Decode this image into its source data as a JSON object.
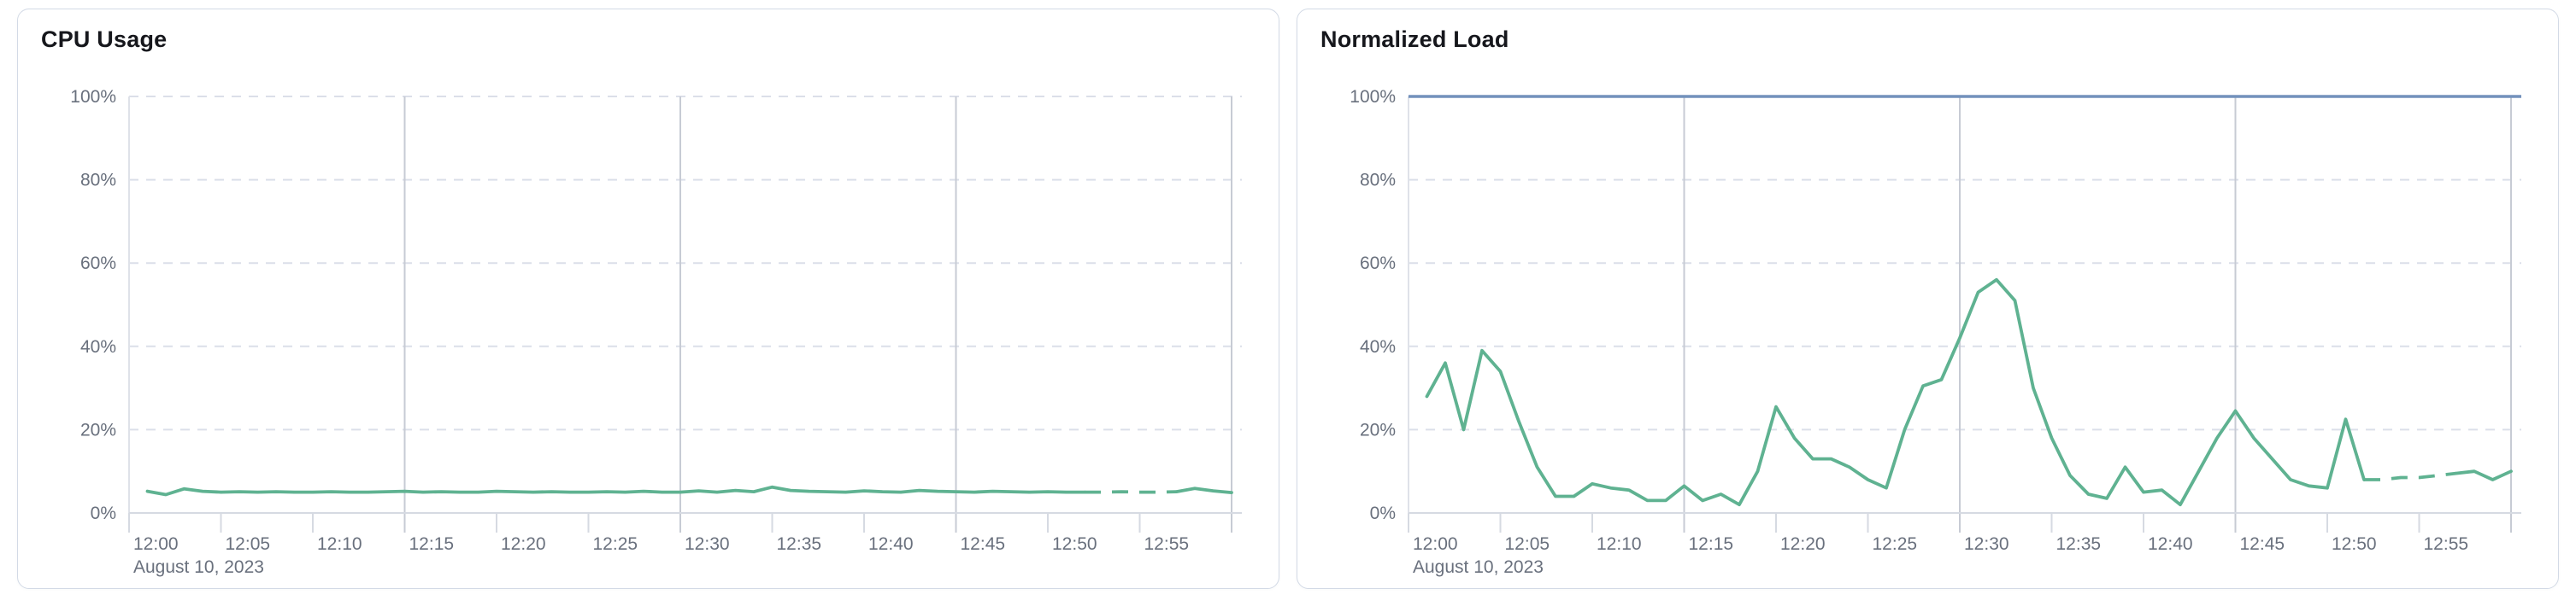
{
  "palette": {
    "page_background": "#FFFFFF",
    "card_background": "#FFFFFF",
    "card_border": "#D3DAE6",
    "title_text": "#16171C",
    "axis_text": "#69707D",
    "h_gridline": "#DBDFE9",
    "v_gridline_major": "#C7CBD4",
    "axis_line": "#D6DAE2",
    "plot_left_edge": "#DFE2E9",
    "series_green": "#5FB291",
    "series_blue": "#7291BC"
  },
  "chart_data": [
    {
      "type": "line",
      "title": "CPU Usage",
      "date_label": "August 10, 2023",
      "x_tick_labels": [
        "12:00",
        "12:05",
        "12:10",
        "12:15",
        "12:20",
        "12:25",
        "12:30",
        "12:35",
        "12:40",
        "12:45",
        "12:50",
        "12:55"
      ],
      "x_axis": {
        "start": "12:00",
        "end": "13:00",
        "tick_interval_minutes": 5,
        "major_gridline_minutes": [
          15,
          30,
          45,
          60
        ]
      },
      "ylabel": "",
      "ylim": [
        0,
        100
      ],
      "grid": {
        "horizontal_dashed": true,
        "legend": "none"
      },
      "y_ticks": [
        {
          "value": 0,
          "label": "0%"
        },
        {
          "value": 20,
          "label": "20%"
        },
        {
          "value": 40,
          "label": "40%"
        },
        {
          "value": 60,
          "label": "60%"
        },
        {
          "value": 80,
          "label": "80%"
        },
        {
          "value": 100,
          "label": "100%"
        }
      ],
      "series": [
        {
          "name": "cpu-usage",
          "color": "#5FB291",
          "start_minute": 1,
          "interval_minutes": 1,
          "dashed_segment_minutes": [
            52,
            57
          ],
          "values": [
            5.2,
            4.4,
            5.8,
            5.2,
            5.0,
            5.1,
            5.0,
            5.1,
            5.0,
            5.0,
            5.1,
            5.0,
            5.0,
            5.1,
            5.2,
            5.0,
            5.1,
            5.0,
            5.0,
            5.2,
            5.1,
            5.0,
            5.1,
            5.0,
            5.0,
            5.1,
            5.0,
            5.2,
            5.0,
            5.0,
            5.3,
            5.0,
            5.4,
            5.1,
            6.2,
            5.4,
            5.2,
            5.1,
            5.0,
            5.3,
            5.1,
            5.0,
            5.4,
            5.2,
            5.1,
            5.0,
            5.2,
            5.1,
            5.0,
            5.1,
            5.0,
            5.0,
            5.0,
            5.1,
            5.0,
            5.0,
            5.1,
            5.9,
            5.3,
            4.9
          ]
        }
      ]
    },
    {
      "type": "line",
      "title": "Normalized Load",
      "date_label": "August 10, 2023",
      "x_tick_labels": [
        "12:00",
        "12:05",
        "12:10",
        "12:15",
        "12:20",
        "12:25",
        "12:30",
        "12:35",
        "12:40",
        "12:45",
        "12:50",
        "12:55"
      ],
      "x_axis": {
        "start": "12:00",
        "end": "13:00",
        "tick_interval_minutes": 5,
        "major_gridline_minutes": [
          15,
          30,
          45,
          60
        ]
      },
      "ylabel": "",
      "ylim": [
        0,
        100
      ],
      "grid": {
        "horizontal_dashed": true,
        "legend": "none"
      },
      "y_ticks": [
        {
          "value": 0,
          "label": "0%"
        },
        {
          "value": 20,
          "label": "20%"
        },
        {
          "value": 40,
          "label": "40%"
        },
        {
          "value": 60,
          "label": "60%"
        },
        {
          "value": 80,
          "label": "80%"
        },
        {
          "value": 100,
          "label": "100%"
        }
      ],
      "series": [
        {
          "name": "normalized-load",
          "color": "#5FB291",
          "start_minute": 1,
          "interval_minutes": 1,
          "dashed_segment_minutes": [
            52,
            57
          ],
          "values": [
            28,
            36,
            20,
            39,
            34,
            22,
            11,
            4,
            4,
            7,
            6,
            5.5,
            3,
            3,
            6.5,
            3,
            4.5,
            2,
            10,
            25.5,
            18,
            13,
            13,
            11,
            8,
            6,
            20,
            30.5,
            32,
            42,
            53,
            56,
            51,
            30,
            18,
            9,
            4.5,
            3.5,
            11,
            5,
            5.5,
            2,
            10,
            18,
            24.5,
            18,
            13,
            8,
            6.5,
            6,
            22.5,
            8,
            8,
            8.5,
            8.5,
            9,
            9.5,
            10,
            8,
            10
          ]
        },
        {
          "name": "load-limit",
          "color": "#7291BC",
          "constant_value": 100
        }
      ]
    }
  ]
}
